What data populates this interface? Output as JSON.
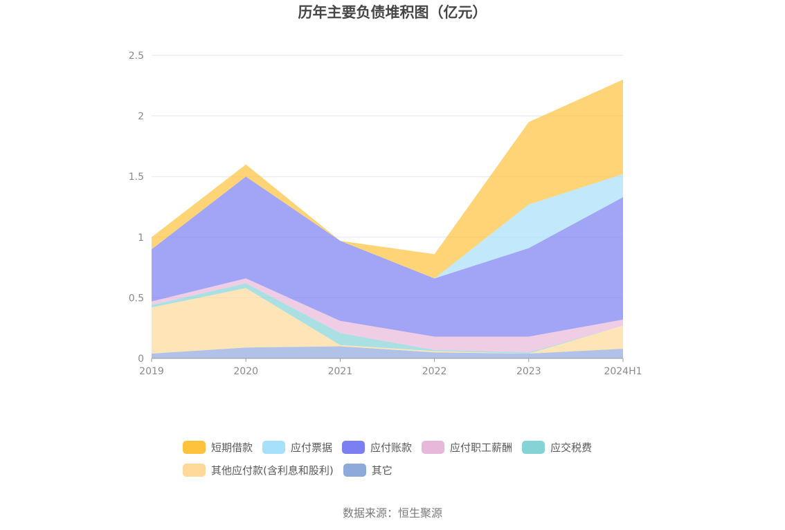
{
  "title": "历年主要负债堆积图（亿元）",
  "source": "数据来源：恒生聚源",
  "chart_data": {
    "type": "area",
    "stacked": true,
    "title": "历年主要负债堆积图（亿元）",
    "xlabel": "",
    "ylabel": "",
    "categories": [
      "2019",
      "2020",
      "2021",
      "2022",
      "2023",
      "2024H1"
    ],
    "yticks": [
      "0",
      "0.5",
      "1",
      "1.5",
      "2",
      "2.5"
    ],
    "ylim": [
      0,
      2.5
    ],
    "grid": true,
    "legend_position": "bottom",
    "series": [
      {
        "name": "其它",
        "color": "#8eaadb",
        "values": [
          0.04,
          0.09,
          0.1,
          0.05,
          0.04,
          0.08
        ]
      },
      {
        "name": "其他应付款(含利息和股利)",
        "color": "#ffd99a",
        "values": [
          0.38,
          0.49,
          0.01,
          0.01,
          0.0,
          0.19
        ]
      },
      {
        "name": "应交税费",
        "color": "#86d3d6",
        "values": [
          0.02,
          0.04,
          0.1,
          0.01,
          0.01,
          0.0
        ]
      },
      {
        "name": "应付职工薪酬",
        "color": "#e8b8da",
        "values": [
          0.03,
          0.04,
          0.1,
          0.11,
          0.13,
          0.05
        ]
      },
      {
        "name": "应付账款",
        "color": "#7b7ff2",
        "values": [
          0.43,
          0.84,
          0.66,
          0.48,
          0.73,
          1.01
        ]
      },
      {
        "name": "应付票据",
        "color": "#a6e0fa",
        "values": [
          0.0,
          0.0,
          0.0,
          0.0,
          0.36,
          0.19
        ]
      },
      {
        "name": "短期借款",
        "color": "#ffc23d",
        "values": [
          0.1,
          0.1,
          0.0,
          0.2,
          0.68,
          0.78
        ]
      }
    ]
  },
  "legend": {
    "row1": [
      {
        "label": "短期借款",
        "color": "#ffc23d"
      },
      {
        "label": "应付票据",
        "color": "#a6e0fa"
      },
      {
        "label": "应付账款",
        "color": "#7b7ff2"
      },
      {
        "label": "应付职工薪酬",
        "color": "#e8b8da"
      },
      {
        "label": "应交税费",
        "color": "#86d3d6"
      }
    ],
    "row2": [
      {
        "label": "其他应付款(含利息和股利)",
        "color": "#ffd99a"
      },
      {
        "label": "其它",
        "color": "#8eaadb"
      }
    ]
  }
}
